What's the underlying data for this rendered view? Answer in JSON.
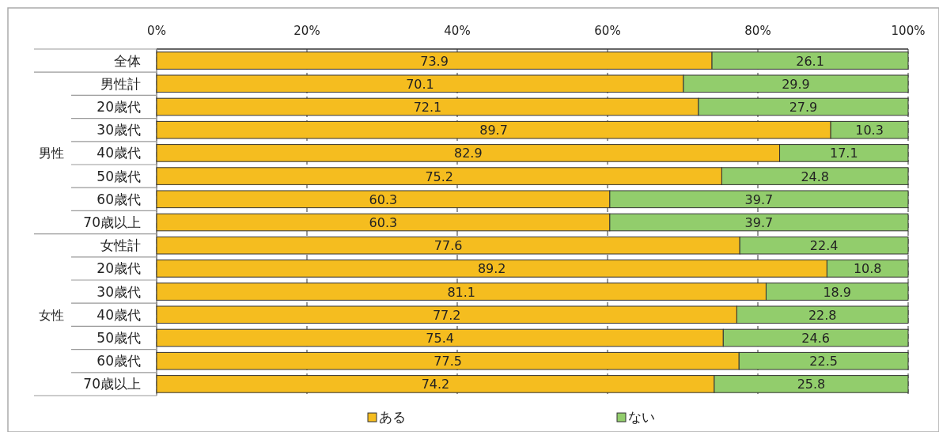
{
  "chart_data": {
    "type": "bar",
    "orientation": "horizontal",
    "stacked": true,
    "data_labels": true,
    "grid": "x",
    "legend": "bottom",
    "categories": [
      "全体",
      "男性計",
      "20歳代",
      "30歳代",
      "40歳代",
      "50歳代",
      "60歳代",
      "70歳以上",
      "女性計",
      "20歳代",
      "30歳代",
      "40歳代",
      "50歳代",
      "60歳代",
      "70歳以上"
    ],
    "series": [
      {
        "name": "ある",
        "color": "#f5bd1f",
        "values": [
          73.9,
          70.1,
          72.1,
          89.7,
          82.9,
          75.2,
          60.3,
          60.3,
          77.6,
          89.2,
          81.1,
          77.2,
          75.4,
          77.5,
          74.2
        ]
      },
      {
        "name": "ない",
        "color": "#92cd6c",
        "values": [
          26.1,
          29.9,
          27.9,
          10.3,
          17.1,
          24.8,
          39.7,
          39.7,
          22.4,
          10.8,
          18.9,
          22.8,
          24.6,
          22.5,
          25.8
        ]
      }
    ],
    "xlim": [
      0,
      100
    ],
    "xticks": [
      {
        "value": 0,
        "label": "0%"
      },
      {
        "value": 20,
        "label": "20%"
      },
      {
        "value": 40,
        "label": "40%"
      },
      {
        "value": 60,
        "label": "60%"
      },
      {
        "value": 80,
        "label": "80%"
      },
      {
        "value": 100,
        "label": "100%"
      }
    ],
    "annotations": [
      "男性",
      "女性"
    ]
  }
}
